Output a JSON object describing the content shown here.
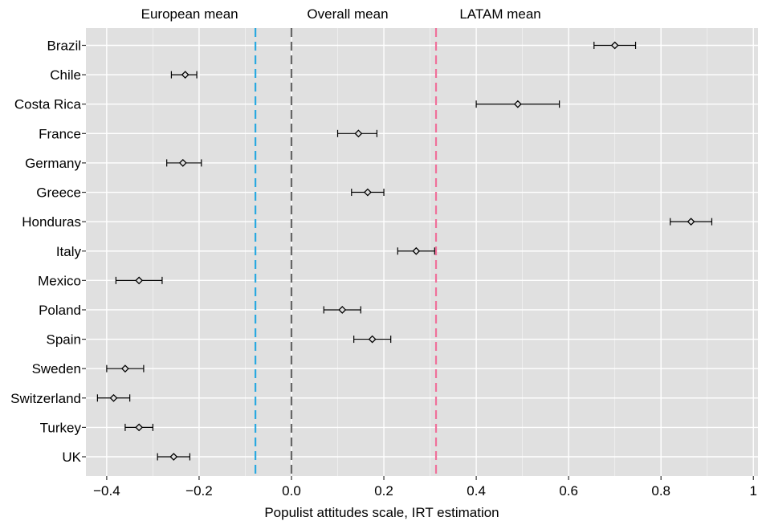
{
  "chart_data": {
    "type": "scatter",
    "xlabel": "Populist attitudes scale, IRT estimation",
    "xlim": [
      -0.445,
      1.01
    ],
    "xticks": [
      -0.4,
      -0.2,
      0.0,
      0.2,
      0.4,
      0.6,
      0.8,
      1.0
    ],
    "xtick_labels": [
      "−0.4",
      "−0.2",
      "0.0",
      "0.2",
      "0.4",
      "0.6",
      "0.8",
      "1"
    ],
    "grid": true,
    "categories": [
      "Brazil",
      "Chile",
      "Costa Rica",
      "France",
      "Germany",
      "Greece",
      "Honduras",
      "Italy",
      "Mexico",
      "Poland",
      "Spain",
      "Sweden",
      "Switzerland",
      "Turkey",
      "UK"
    ],
    "points": [
      {
        "label": "Brazil",
        "x": 0.7,
        "lo": 0.655,
        "hi": 0.745
      },
      {
        "label": "Chile",
        "x": -0.23,
        "lo": -0.26,
        "hi": -0.205
      },
      {
        "label": "Costa Rica",
        "x": 0.49,
        "lo": 0.4,
        "hi": 0.58
      },
      {
        "label": "France",
        "x": 0.145,
        "lo": 0.1,
        "hi": 0.185
      },
      {
        "label": "Germany",
        "x": -0.235,
        "lo": -0.27,
        "hi": -0.195
      },
      {
        "label": "Greece",
        "x": 0.165,
        "lo": 0.13,
        "hi": 0.2
      },
      {
        "label": "Honduras",
        "x": 0.865,
        "lo": 0.82,
        "hi": 0.91
      },
      {
        "label": "Italy",
        "x": 0.27,
        "lo": 0.23,
        "hi": 0.31
      },
      {
        "label": "Mexico",
        "x": -0.33,
        "lo": -0.38,
        "hi": -0.28
      },
      {
        "label": "Poland",
        "x": 0.11,
        "lo": 0.07,
        "hi": 0.15
      },
      {
        "label": "Spain",
        "x": 0.175,
        "lo": 0.135,
        "hi": 0.215
      },
      {
        "label": "Sweden",
        "x": -0.36,
        "lo": -0.4,
        "hi": -0.32
      },
      {
        "label": "Switzerland",
        "x": -0.385,
        "lo": -0.42,
        "hi": -0.35
      },
      {
        "label": "Turkey",
        "x": -0.33,
        "lo": -0.36,
        "hi": -0.3
      },
      {
        "label": "UK",
        "x": -0.255,
        "lo": -0.29,
        "hi": -0.22
      }
    ],
    "reference_lines": [
      {
        "label": "European mean",
        "x": -0.078,
        "color": "#29a9e0"
      },
      {
        "label": "Overall mean",
        "x": 0.0,
        "color": "#666666"
      },
      {
        "label": "LATAM mean",
        "x": 0.313,
        "color": "#f0709a"
      }
    ],
    "colors": {
      "panel_background": "#e0e0e0",
      "gridline": "#ffffff",
      "marker": "#000000"
    }
  }
}
